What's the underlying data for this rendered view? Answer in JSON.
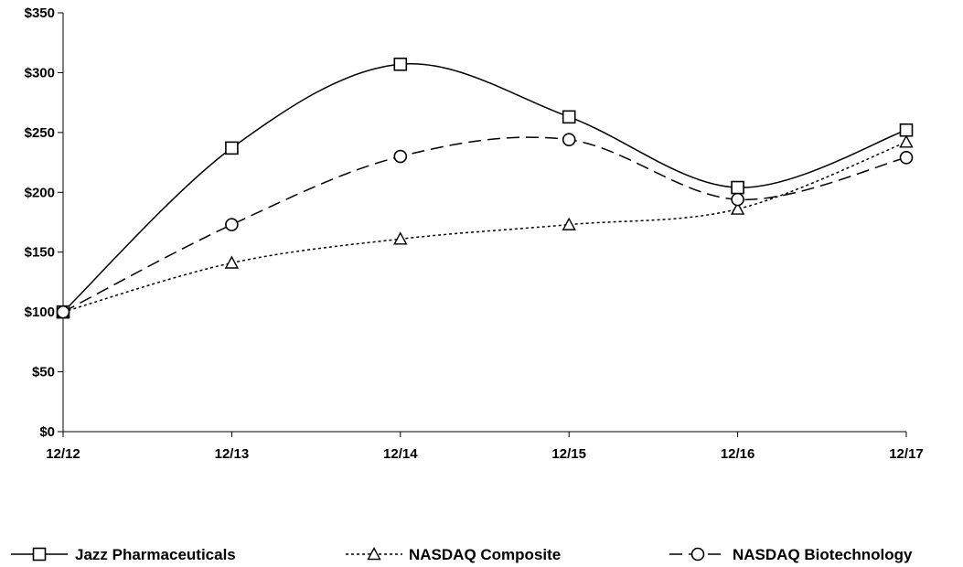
{
  "chart_data": {
    "type": "line",
    "categories": [
      "12/12",
      "12/13",
      "12/14",
      "12/15",
      "12/16",
      "12/17"
    ],
    "y_tick_labels": [
      "$0",
      "$50",
      "$100",
      "$150",
      "$200",
      "$250",
      "$300",
      "$350"
    ],
    "y_ticks": [
      0,
      50,
      100,
      150,
      200,
      250,
      300,
      350
    ],
    "ylim": [
      0,
      350
    ],
    "grid": false,
    "legend_position": "bottom",
    "smooth": true,
    "series": [
      {
        "name": "Jazz Pharmaceuticals",
        "values": [
          100,
          237,
          307,
          263,
          204,
          252
        ],
        "marker": "square",
        "dash": "solid",
        "color": "#000000"
      },
      {
        "name": "NASDAQ Composite",
        "values": [
          100,
          141,
          161,
          173,
          186,
          242
        ],
        "marker": "triangle",
        "dash": "dotted",
        "color": "#000000"
      },
      {
        "name": "NASDAQ Biotechnology",
        "values": [
          100,
          173,
          230,
          244,
          194,
          229
        ],
        "marker": "circle",
        "dash": "dashed",
        "color": "#000000"
      }
    ]
  }
}
